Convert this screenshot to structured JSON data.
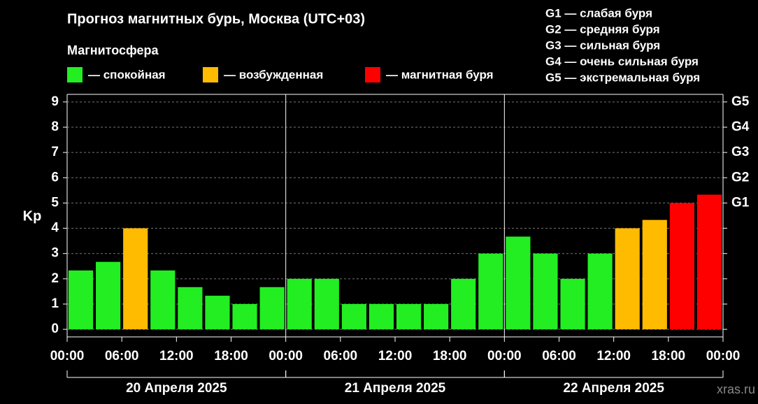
{
  "chart_data": {
    "type": "bar",
    "title": "Прогноз магнитных бурь, Москва (UTC+03)",
    "subtitle": "Магнитосфера",
    "y_label": "Kp",
    "watermark": "xras.ru",
    "legend": [
      {
        "label": "— спокойная",
        "color": "#22ee22"
      },
      {
        "label": "— возбужденная",
        "color": "#ffbb00"
      },
      {
        "label": "— магнитная буря",
        "color": "#ff0000"
      }
    ],
    "storm_scale": [
      "G1 — слабая буря",
      "G2 — средняя буря",
      "G3 — сильная буря",
      "G4 — очень сильная буря",
      "G5 — экстремальная буря"
    ],
    "x": [
      1.5,
      4.5,
      7.5,
      10.5,
      13.5,
      16.5,
      19.5,
      22.5,
      25.5,
      28.5,
      31.5,
      34.5,
      37.5,
      40.5,
      43.5,
      46.5,
      49.5,
      52.5,
      55.5,
      58.5,
      61.5,
      64.5,
      67.5,
      70.5
    ],
    "values": [
      2.33,
      2.67,
      4,
      2.33,
      1.67,
      1.33,
      1,
      1.67,
      2,
      2,
      1,
      1,
      1,
      1,
      2,
      3,
      3.67,
      3,
      2,
      3,
      4,
      4.33,
      5,
      5.33
    ],
    "colors": [
      "#22ee22",
      "#22ee22",
      "#ffbb00",
      "#22ee22",
      "#22ee22",
      "#22ee22",
      "#22ee22",
      "#22ee22",
      "#22ee22",
      "#22ee22",
      "#22ee22",
      "#22ee22",
      "#22ee22",
      "#22ee22",
      "#22ee22",
      "#22ee22",
      "#22ee22",
      "#22ee22",
      "#22ee22",
      "#22ee22",
      "#ffbb00",
      "#ffbb00",
      "#ff0000",
      "#ff0000"
    ],
    "xlim": [
      0,
      72
    ],
    "xticks": [
      {
        "value": 0,
        "label": "00:00"
      },
      {
        "value": 6,
        "label": "06:00"
      },
      {
        "value": 12,
        "label": "12:00"
      },
      {
        "value": 18,
        "label": "18:00"
      },
      {
        "value": 24,
        "label": "00:00"
      },
      {
        "value": 30,
        "label": "06:00"
      },
      {
        "value": 36,
        "label": "12:00"
      },
      {
        "value": 42,
        "label": "18:00"
      },
      {
        "value": 48,
        "label": "00:00"
      },
      {
        "value": 54,
        "label": "06:00"
      },
      {
        "value": 60,
        "label": "12:00"
      },
      {
        "value": 66,
        "label": "18:00"
      },
      {
        "value": 72,
        "label": "00:00"
      }
    ],
    "days": [
      "20 Апреля 2025",
      "21 Апреля 2025",
      "22 Апреля 2025"
    ],
    "ylim": [
      -0.3,
      9.3
    ],
    "yticks": [
      0,
      1,
      2,
      3,
      4,
      5,
      6,
      7,
      8,
      9
    ],
    "y2lim": [
      -0.3,
      9.3
    ],
    "y2ticks": [
      {
        "value": 5,
        "label": "G1"
      },
      {
        "value": 6,
        "label": "G2"
      },
      {
        "value": 7,
        "label": "G3"
      },
      {
        "value": 8,
        "label": "G4"
      },
      {
        "value": 9,
        "label": "G5"
      }
    ],
    "grid": true
  }
}
